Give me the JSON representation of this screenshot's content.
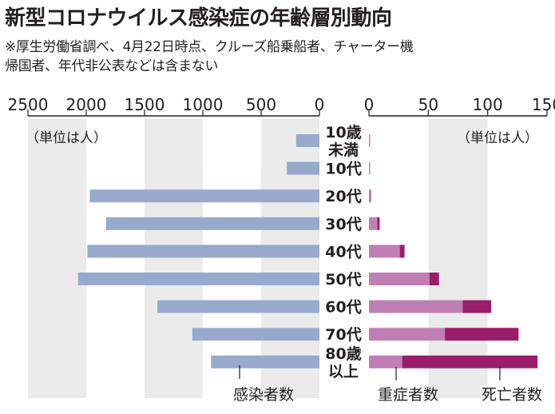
{
  "chart_data": {
    "type": "bar",
    "title": "新型コロナウイルス感染症の年齢層別動向",
    "notes": [
      "※厚生労働省調べ、4月22日時点、クルーズ船乗船者、チャーター機",
      "帰国者、年代非公表などは含まない"
    ],
    "categories": [
      {
        "lines": [
          "10歳",
          "未満"
        ]
      },
      {
        "lines": [
          "10代"
        ]
      },
      {
        "lines": [
          "20代"
        ]
      },
      {
        "lines": [
          "30代"
        ]
      },
      {
        "lines": [
          "40代"
        ]
      },
      {
        "lines": [
          "50代"
        ]
      },
      {
        "lines": [
          "60代"
        ]
      },
      {
        "lines": [
          "70代"
        ]
      },
      {
        "lines": [
          "80歳",
          "以上"
        ]
      }
    ],
    "left_panel": {
      "unit_label": "（単位は人）",
      "xlim": [
        2500,
        0
      ],
      "ticks": [
        2500,
        2000,
        1500,
        1000,
        500,
        0
      ],
      "series": [
        {
          "name": "感染者数",
          "color": "#97aacd",
          "values": [
            200,
            280,
            1970,
            1830,
            1990,
            2070,
            1390,
            1090,
            930
          ]
        }
      ]
    },
    "right_panel": {
      "unit_label": "（単位は人）",
      "xlim": [
        0,
        150
      ],
      "ticks": [
        0,
        50,
        100,
        150
      ],
      "stacked": true,
      "series": [
        {
          "name": "重症者数",
          "color": "#c07fb4",
          "values": [
            1,
            1,
            2,
            7,
            26,
            51,
            79,
            64,
            28
          ]
        },
        {
          "name": "死亡者数",
          "color": "#9a1d6c",
          "values": [
            0,
            0,
            0,
            2,
            4,
            8,
            24,
            62,
            114
          ]
        }
      ]
    }
  }
}
